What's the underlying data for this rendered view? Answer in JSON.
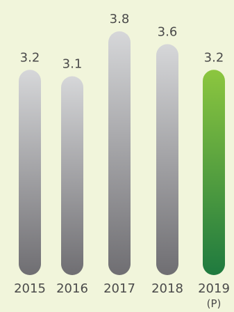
{
  "chart_data": {
    "type": "bar",
    "categories": [
      "2015",
      "2016",
      "2017",
      "2018",
      "2019"
    ],
    "category_sublabels": [
      "",
      "",
      "",
      "",
      "(P)"
    ],
    "values": [
      3.2,
      3.1,
      3.8,
      3.6,
      3.2
    ],
    "data_labels": [
      "3.2",
      "3.1",
      "3.8",
      "3.6",
      "3.2"
    ],
    "title": "",
    "xlabel": "",
    "ylabel": "",
    "ylim": [
      0,
      3.8
    ],
    "grid": false,
    "legend": "none",
    "colors": {
      "background": "#f1f5db",
      "bar_gray_top": "#d6d7d9",
      "bar_gray_bottom": "#6f6e72",
      "bar_highlight_top": "#8cc63f",
      "bar_highlight_bottom": "#1f7a3f",
      "label": "#4a4a4a"
    },
    "highlight_index": 4
  }
}
